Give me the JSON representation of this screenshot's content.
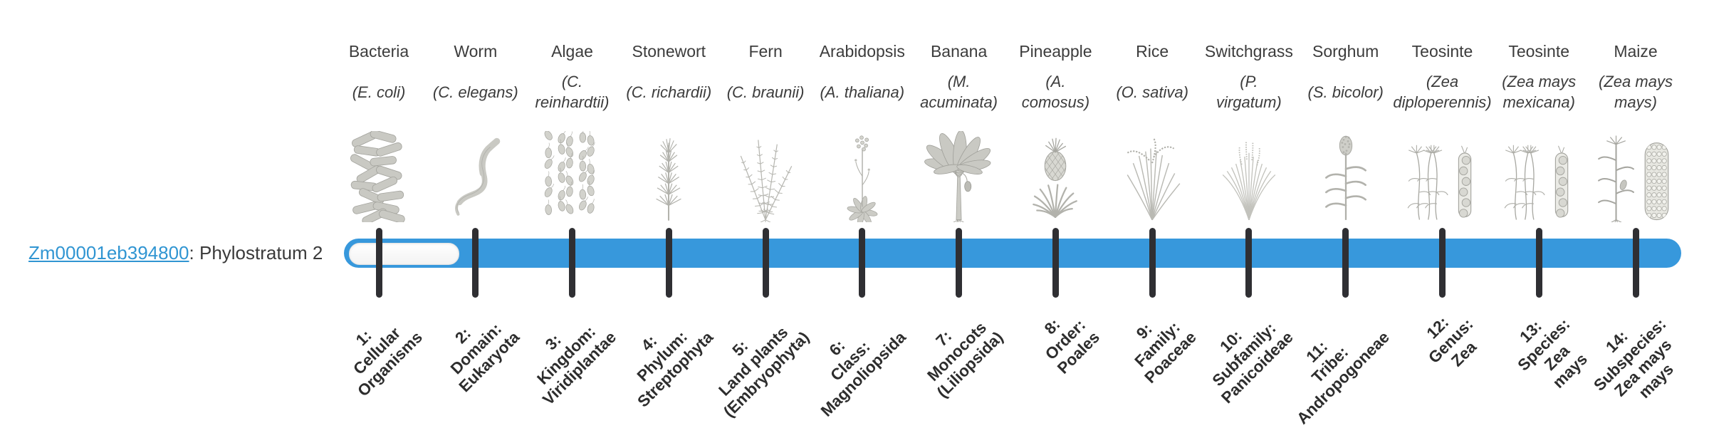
{
  "gene": {
    "id": "Zm00001eb394800",
    "rest": ": Phylostratum 2"
  },
  "timeline": {
    "phylostratum_of_gene": 2,
    "bar_color": "#3798dc",
    "unfilled_color": "#fbfbfb",
    "tick_color": "#2f2f33",
    "link_color": "#3095d2"
  },
  "organisms": [
    {
      "name": "Bacteria",
      "scientific": "(E. coli)",
      "icon": "bacteria",
      "stratum_label": "1:\nCellular\nOrganisms"
    },
    {
      "name": "Worm",
      "scientific": "(C. elegans)",
      "icon": "worm",
      "stratum_label": "2:\nDomain:\nEukaryota"
    },
    {
      "name": "Algae",
      "scientific": "(C.\nreinhardtii)",
      "icon": "algae",
      "stratum_label": "3:\nKingdom:\nViridiplantae"
    },
    {
      "name": "Stonewort",
      "scientific": "(C. richardii)",
      "icon": "stonewort",
      "stratum_label": "4:\nPhylum:\nStreptophyta"
    },
    {
      "name": "Fern",
      "scientific": "(C. braunii)",
      "icon": "fern",
      "stratum_label": "5:\nLand plants\n(Embryophyta)"
    },
    {
      "name": "Arabidopsis",
      "scientific": "(A. thaliana)",
      "icon": "arabidopsis",
      "stratum_label": "6:\nClass:\nMagnoliopsida"
    },
    {
      "name": "Banana",
      "scientific": "(M.\nacuminata)",
      "icon": "banana",
      "stratum_label": "7:\nMonocots\n(Liliopsida)"
    },
    {
      "name": "Pineapple",
      "scientific": "(A.\ncomosus)",
      "icon": "pineapple",
      "stratum_label": "8:\nOrder:\nPoales"
    },
    {
      "name": "Rice",
      "scientific": "(O. sativa)",
      "icon": "rice",
      "stratum_label": "9:\nFamily:\nPoaceae"
    },
    {
      "name": "Switchgrass",
      "scientific": "(P.\nvirgatum)",
      "icon": "switchgrass",
      "stratum_label": "10:\nSubfamily:\nPanicoideae"
    },
    {
      "name": "Sorghum",
      "scientific": "(S. bicolor)",
      "icon": "sorghum",
      "stratum_label": "11:\nTribe:\nAndropogoneae"
    },
    {
      "name": "Teosinte",
      "scientific": "(Zea\ndiploperennis)",
      "icon": "teosinte-diploperennis",
      "stratum_label": "12:\nGenus:\nZea"
    },
    {
      "name": "Teosinte",
      "scientific": "(Zea mays\nmexicana)",
      "icon": "teosinte-mexicana",
      "stratum_label": "13:\nSpecies:\nZea\nmays"
    },
    {
      "name": "Maize",
      "scientific": "(Zea mays\nmays)",
      "icon": "maize",
      "stratum_label": "14:\nSubspecies:\nZea mays\nmays"
    }
  ]
}
